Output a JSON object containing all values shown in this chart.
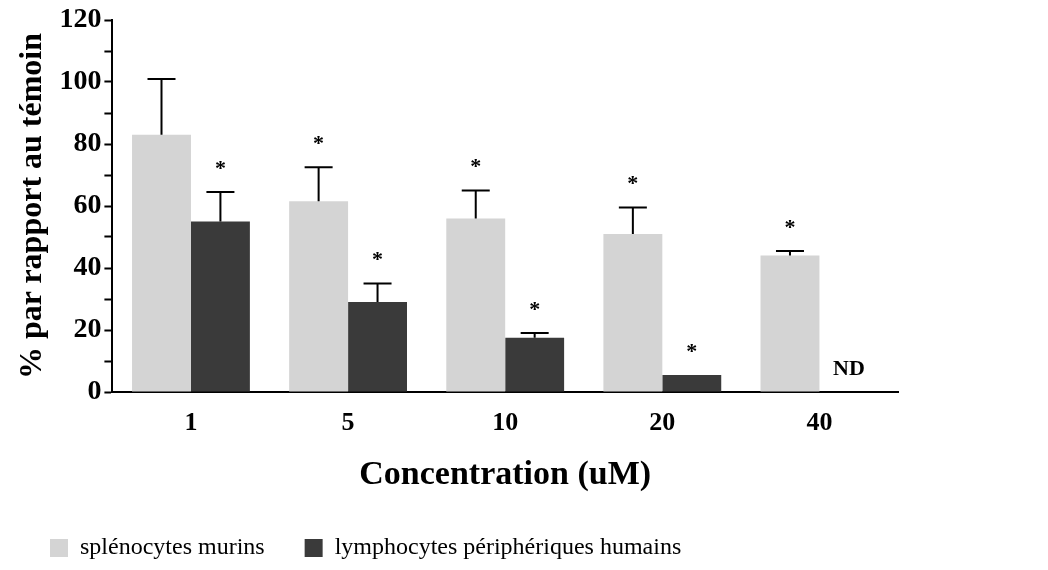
{
  "chart_data": {
    "type": "bar",
    "xlabel": "Concentration (uM)",
    "ylabel": "% par rapport au témoin",
    "categories": [
      "1",
      "5",
      "10",
      "20",
      "40"
    ],
    "series": [
      {
        "name": "splénocytes murins",
        "color": "#d4d4d4",
        "values": [
          83,
          61.5,
          56,
          51,
          44
        ],
        "errors": [
          [
            83,
            101
          ],
          [
            61.5,
            72.5
          ],
          [
            56,
            65
          ],
          [
            51,
            59.5
          ],
          [
            44,
            45.5
          ]
        ],
        "value_labels": [
          null,
          "*",
          "*",
          "*",
          "*"
        ]
      },
      {
        "name": "lymphocytes périphériques humains",
        "color": "#3a3a3a",
        "values": [
          55,
          29,
          17.5,
          5.5,
          null
        ],
        "errors": [
          [
            55,
            64.5
          ],
          [
            29,
            35
          ],
          [
            17.5,
            19
          ],
          null,
          null
        ],
        "value_labels": [
          "*",
          "*",
          "*",
          "*",
          "ND"
        ]
      }
    ],
    "ylim": [
      0,
      120
    ],
    "yticks": [
      0,
      {
        "value": 10,
        "label": null
      },
      20,
      {
        "value": 30,
        "label": null
      },
      40,
      {
        "value": 50,
        "label": null
      },
      60,
      {
        "value": 70,
        "label": null
      },
      80,
      {
        "value": 90,
        "label": null
      },
      100,
      {
        "value": 110,
        "label": null
      },
      120
    ],
    "grid": false,
    "legend": "bottom"
  }
}
